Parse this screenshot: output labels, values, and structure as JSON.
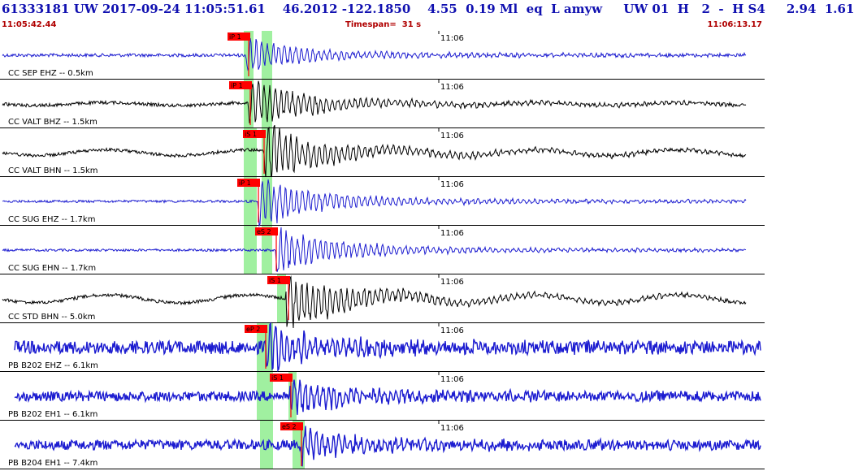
{
  "header": {
    "title": "61333181 UW 2017-09-24 11:05:51.61    46.2012 -122.1850    4.55  0.19 Ml  eq  L amyw     UW 01  H   2  -  H S4     2.94  1.61",
    "start_time": "11:05:42.44",
    "timespan": "Timespan=  31 s",
    "end_time": "11:06:13.17"
  },
  "colors": {
    "trace_blue": "#1c1cd0",
    "trace_black": "#000000",
    "pick_red": "#ff0000",
    "window_green": "#a0f0a0",
    "text_red": "#b00000"
  },
  "minute_mark": "11:06",
  "channels": [
    {
      "label": "CC SEP EHZ -- 0.5km",
      "color": "blue",
      "picks": [
        {
          "text": "iP 1"
        }
      ]
    },
    {
      "label": "CC VALT BHZ -- 1.5km",
      "color": "black",
      "picks": [
        {
          "text": "iP 1"
        }
      ]
    },
    {
      "label": "CC VALT BHN -- 1.5km",
      "color": "black",
      "picks": [
        {
          "text": "iS 1"
        }
      ]
    },
    {
      "label": "CC SUG EHZ -- 1.7km",
      "color": "blue",
      "picks": [
        {
          "text": "iP 1"
        }
      ]
    },
    {
      "label": "CC SUG EHN -- 1.7km",
      "color": "blue",
      "picks": [
        {
          "text": "eS 2"
        }
      ]
    },
    {
      "label": "CC STD BHN -- 5.0km",
      "color": "black",
      "picks": [
        {
          "text": "iS 1"
        }
      ]
    },
    {
      "label": "PB B202 EHZ -- 6.1km",
      "color": "blue",
      "picks": [
        {
          "text": "eP 2"
        }
      ]
    },
    {
      "label": "PB B202 EH1 -- 6.1km",
      "color": "blue",
      "picks": [
        {
          "text": "iS 1"
        }
      ]
    },
    {
      "label": "PB B204 EH1 -- 7.4km",
      "color": "blue",
      "picks": [
        {
          "text": "eS 2"
        }
      ]
    }
  ]
}
